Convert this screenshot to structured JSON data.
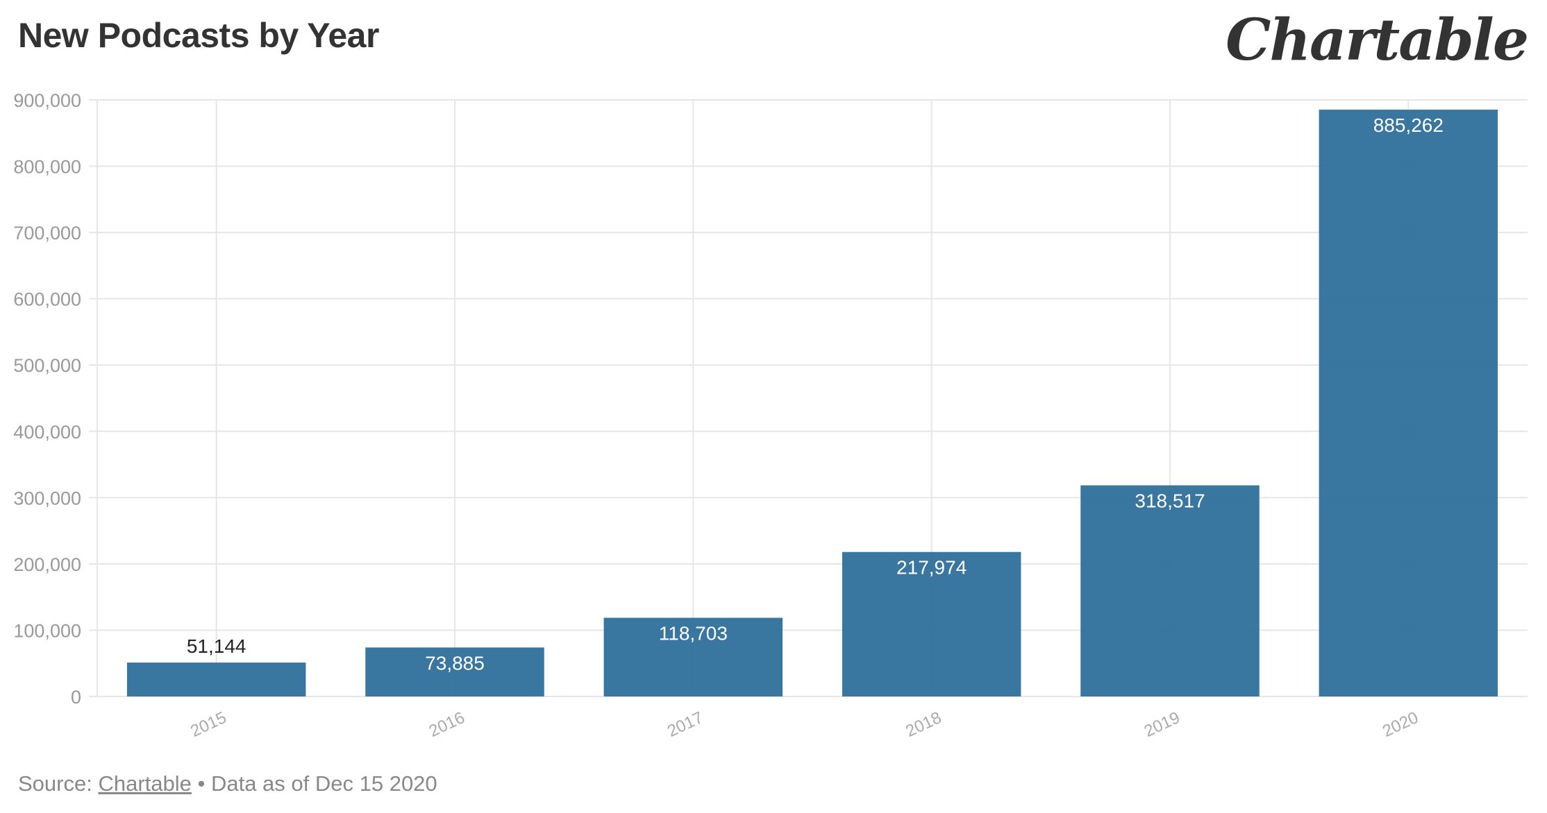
{
  "title": "New Podcasts by Year",
  "logo": "Chartable",
  "footer": {
    "source_prefix": "Source: ",
    "source_link": "Chartable",
    "suffix": " • Data as of Dec 15 2020"
  },
  "colors": {
    "bar": "#2e6f9b",
    "grid": "#e6e6e6",
    "axis_text": "#999999",
    "label_inside": "#ffffff",
    "label_outside": "#222222"
  },
  "chart_data": {
    "type": "bar",
    "categories": [
      "2015",
      "2016",
      "2017",
      "2018",
      "2019",
      "2020"
    ],
    "values": [
      51144,
      73885,
      118703,
      217974,
      318517,
      885262
    ],
    "data_labels": [
      "51,144",
      "73,885",
      "118,703",
      "217,974",
      "318,517",
      "885,262"
    ],
    "y_ticks": [
      0,
      100000,
      200000,
      300000,
      400000,
      500000,
      600000,
      700000,
      800000,
      900000
    ],
    "y_tick_labels": [
      "0",
      "100,000",
      "200,000",
      "300,000",
      "400,000",
      "500,000",
      "600,000",
      "700,000",
      "800,000",
      "900,000"
    ],
    "ylim": [
      0,
      900000
    ],
    "grid": true,
    "legend": "none"
  }
}
